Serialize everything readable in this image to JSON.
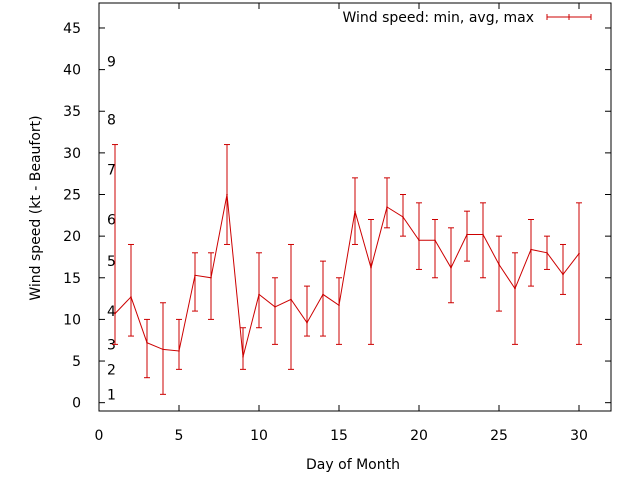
{
  "chart_data": {
    "type": "line",
    "title": "",
    "xlabel": "Day of Month",
    "ylabel": "Wind speed (kt - Beaufort)",
    "xlim": [
      0,
      32
    ],
    "ylim": [
      -1,
      48
    ],
    "xticks": [
      0,
      5,
      10,
      15,
      20,
      25,
      30
    ],
    "yticks": [
      0,
      5,
      10,
      15,
      20,
      25,
      30,
      35,
      40,
      45
    ],
    "grid": false,
    "legend_position": "top-right",
    "beaufort_labels": [
      {
        "label": "1",
        "y": 1
      },
      {
        "label": "2",
        "y": 4
      },
      {
        "label": "3",
        "y": 7
      },
      {
        "label": "4",
        "y": 11
      },
      {
        "label": "5",
        "y": 17
      },
      {
        "label": "6",
        "y": 22
      },
      {
        "label": "7",
        "y": 28
      },
      {
        "label": "8",
        "y": 34
      },
      {
        "label": "9",
        "y": 41
      }
    ],
    "series": [
      {
        "name": "Wind speed: min, avg, max",
        "color": "#cc0000",
        "x": [
          1,
          2,
          3,
          4,
          5,
          6,
          7,
          8,
          9,
          10,
          11,
          12,
          13,
          14,
          15,
          16,
          17,
          18,
          19,
          20,
          21,
          22,
          23,
          24,
          25,
          26,
          27,
          28,
          29,
          30
        ],
        "avg": [
          10.7,
          12.7,
          7.2,
          6.4,
          6.2,
          15.3,
          15.0,
          25.0,
          5.5,
          13.0,
          11.5,
          12.4,
          9.6,
          13.0,
          11.7,
          23.0,
          16.2,
          23.5,
          22.3,
          19.5,
          19.5,
          16.2,
          20.2,
          20.2,
          16.6,
          13.7,
          18.4,
          18.0,
          15.4,
          17.9
        ],
        "min": [
          7,
          8,
          3,
          1,
          4,
          11,
          10,
          19,
          4,
          9,
          7,
          4,
          8,
          8,
          7,
          19,
          7,
          21,
          20,
          16,
          15,
          12,
          17,
          15,
          11,
          7,
          14,
          16,
          13,
          7
        ],
        "max": [
          31,
          19,
          10,
          12,
          10,
          18,
          18,
          31,
          9,
          18,
          15,
          19,
          14,
          17,
          15,
          27,
          22,
          27,
          25,
          24,
          22,
          21,
          23,
          24,
          20,
          18,
          22,
          20,
          19,
          24
        ]
      }
    ]
  }
}
